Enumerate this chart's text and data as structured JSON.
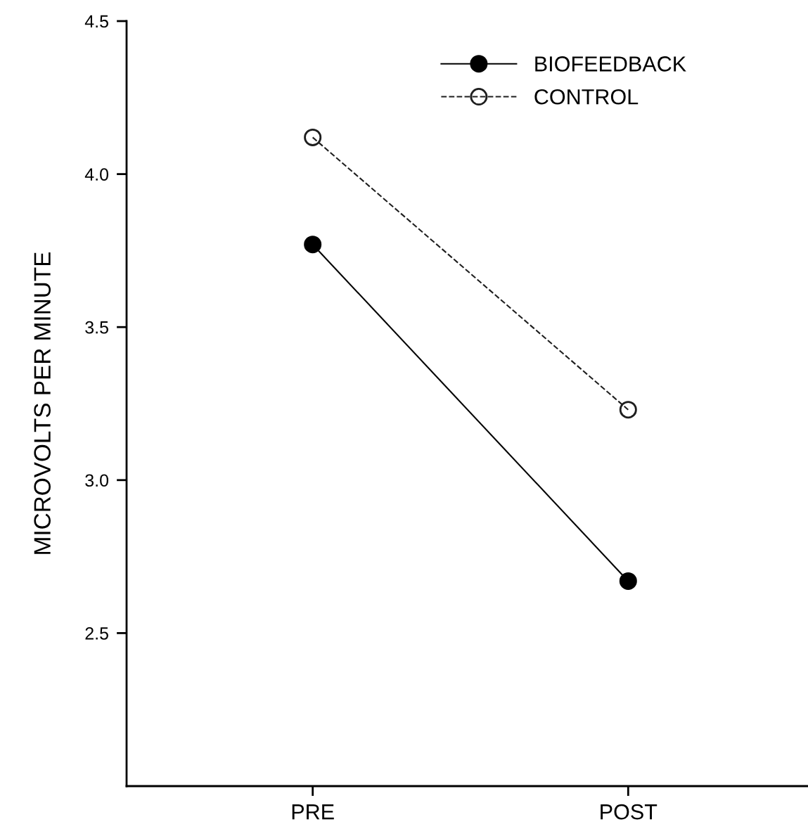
{
  "chart_data": {
    "type": "line",
    "ylabel": "MICROVOLTS PER MINUTE",
    "categories": [
      "PRE",
      "POST"
    ],
    "series": [
      {
        "name": "BIOFEEDBACK",
        "color": "#000000",
        "values": [
          3.77,
          2.67
        ],
        "line_style": "solid"
      },
      {
        "name": "CONTROL",
        "color": "#1e1e1e",
        "values": [
          4.12,
          3.23
        ],
        "line_style": "dashed"
      }
    ],
    "ylim": [
      2.0,
      4.5
    ],
    "yticks": [
      2.5,
      {
        "value": 3,
        "label": "3.0"
      },
      3.5,
      {
        "value": 4,
        "label": "4.0"
      },
      4.5
    ],
    "marker": "circle",
    "grid": false,
    "legend": "top right"
  }
}
